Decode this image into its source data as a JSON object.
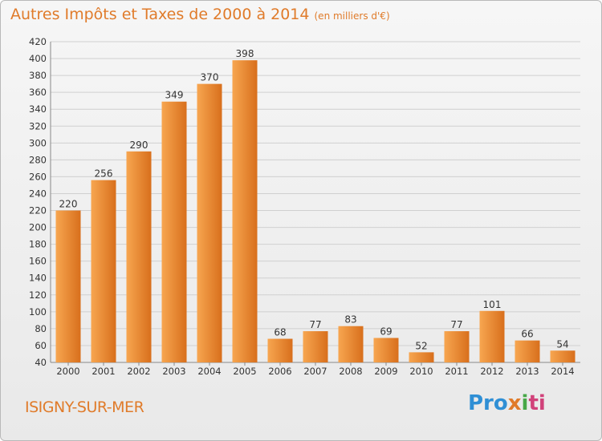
{
  "header": {
    "title": "Autres Impôts et Taxes de 2000 à 2014",
    "subtitle": "(en milliers d'€)"
  },
  "footer": {
    "place": "ISIGNY-SUR-MER",
    "logo_text": "Proxiti",
    "logo_colors": [
      "#2f8fd5",
      "#e07b2a",
      "#48a848",
      "#d1427a"
    ]
  },
  "colors": {
    "bar_light": "#f7a650",
    "bar_dark": "#d86f1c",
    "title": "#e07b2a",
    "grid": "#d0d0d0"
  },
  "chart_data": {
    "type": "bar",
    "title": "Autres Impôts et Taxes de 2000 à 2014",
    "subtitle": "(en milliers d'€)",
    "categories": [
      "2000",
      "2001",
      "2002",
      "2003",
      "2004",
      "2005",
      "2006",
      "2007",
      "2008",
      "2009",
      "2010",
      "2011",
      "2012",
      "2013",
      "2014"
    ],
    "values": [
      220,
      256,
      290,
      349,
      370,
      398,
      68,
      77,
      83,
      69,
      52,
      77,
      101,
      66,
      54
    ],
    "ylim": [
      40,
      420
    ],
    "ytick_step": 20,
    "grid": true,
    "xlabel": "",
    "ylabel": ""
  }
}
